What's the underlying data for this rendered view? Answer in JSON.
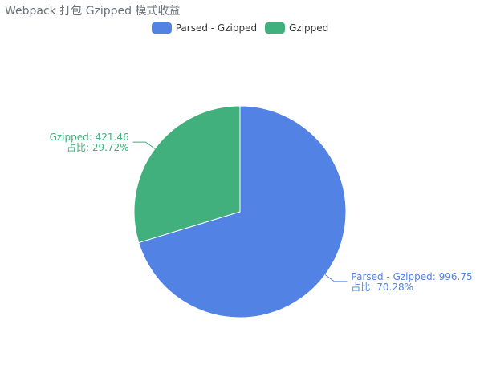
{
  "chart_data": {
    "type": "pie",
    "title": "Webpack 打包 Gzipped 模式收益",
    "series": [
      {
        "name": "Parsed - Gzipped",
        "value": 996.75,
        "percent_label": "占比: 70.28%",
        "color": "#5182e4"
      },
      {
        "name": "Gzipped",
        "value": 421.46,
        "percent_label": "占比: 29.72%",
        "color": "#41b07c"
      }
    ],
    "legend": {
      "position": "top-center",
      "items": [
        "Parsed - Gzipped",
        "Gzipped"
      ]
    }
  }
}
